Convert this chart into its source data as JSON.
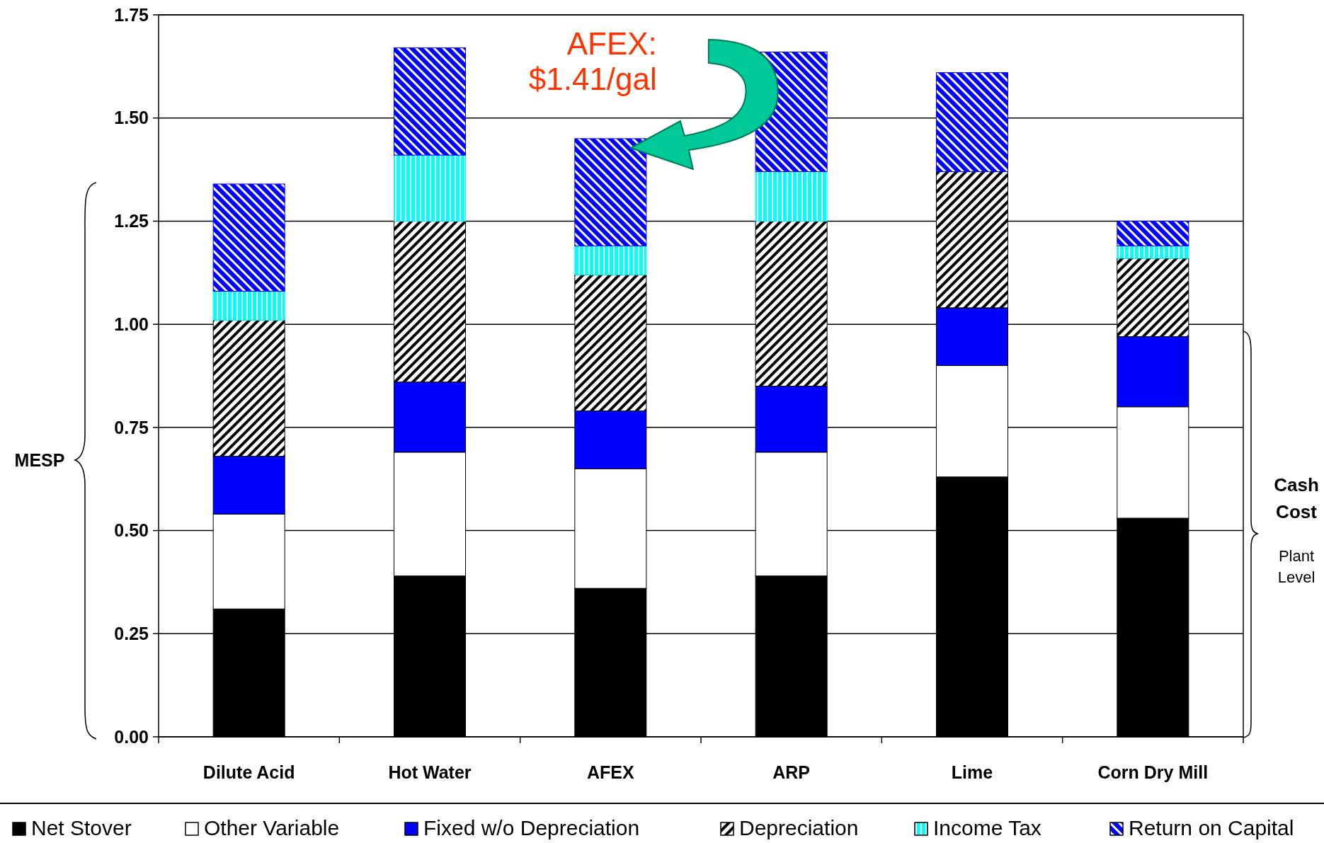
{
  "chart_data": {
    "type": "bar",
    "stacked": true,
    "categories": [
      "Dilute Acid",
      "Hot Water",
      "AFEX",
      "ARP",
      "Lime",
      "Corn Dry Mill"
    ],
    "series": [
      {
        "name": "Net Stover",
        "color": "#000000",
        "values": [
          0.31,
          0.39,
          0.36,
          0.39,
          0.63,
          0.53
        ]
      },
      {
        "name": "Other Variable",
        "color": "#ffffff",
        "values": [
          0.23,
          0.3,
          0.29,
          0.3,
          0.27,
          0.27
        ]
      },
      {
        "name": "Fixed w/o Depreciation",
        "color": "#0000ff",
        "values": [
          0.14,
          0.17,
          0.14,
          0.16,
          0.14,
          0.17
        ]
      },
      {
        "name": "Depreciation",
        "color": "#000000",
        "values": [
          0.33,
          0.39,
          0.33,
          0.4,
          0.33,
          0.19
        ]
      },
      {
        "name": "Income Tax",
        "color": "#00ffff",
        "values": [
          0.07,
          0.16,
          0.07,
          0.12,
          0,
          0.03
        ]
      },
      {
        "name": "Return on Capital",
        "color": "#0000ff",
        "values": [
          0.26,
          0.26,
          0.26,
          0.29,
          0.24,
          0.06
        ]
      }
    ],
    "ylim": [
      0,
      1.75
    ],
    "yticks": [
      {
        "value": 0,
        "label": "0.00"
      },
      {
        "value": 0.25,
        "label": "0.25"
      },
      {
        "value": 0.5,
        "label": "0.50"
      },
      {
        "value": 0.75,
        "label": "0.75"
      },
      {
        "value": 1,
        "label": "1.00"
      },
      {
        "value": 1.25,
        "label": "1.25"
      },
      {
        "value": 1.5,
        "label": "1.50"
      },
      {
        "value": 1.75,
        "label": "1.75"
      }
    ],
    "grid": "y",
    "legend": "bottom",
    "annotations": [
      "AFEX: $1.41/gal",
      "MESP",
      "Cash Cost",
      "Plant Level"
    ]
  }
}
